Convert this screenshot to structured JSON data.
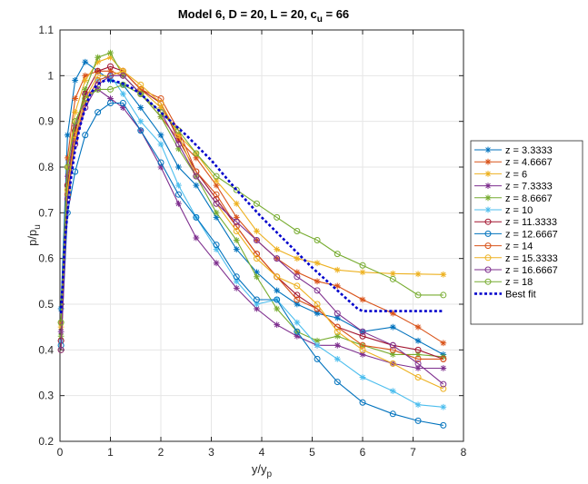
{
  "chart_data": {
    "type": "line",
    "title": "Model 6, D = 20, L = 20, c",
    "title_sub": "u",
    "title_tail": " = 66",
    "xlabel": "y/y",
    "xlabel_sub": "p",
    "ylabel": "p/p",
    "ylabel_sub": "u",
    "xlim": [
      0,
      8
    ],
    "ylim": [
      0.2,
      1.1
    ],
    "xticks": [
      0,
      1,
      2,
      3,
      4,
      5,
      6,
      7,
      8
    ],
    "yticks": [
      0.2,
      0.3,
      0.4,
      0.5,
      0.6,
      0.7,
      0.8,
      0.9,
      1,
      1.1
    ],
    "xtick_labels": [
      "0",
      "1",
      "2",
      "3",
      "4",
      "5",
      "6",
      "7",
      "8"
    ],
    "ytick_labels": [
      "0.2",
      "0.3",
      "0.4",
      "0.5",
      "0.6",
      "0.7",
      "0.8",
      "0.9",
      "1",
      "1.1"
    ],
    "grid": true,
    "legend_position": "outside-right",
    "x": [
      0.02,
      0.15,
      0.3,
      0.5,
      0.75,
      1.0,
      1.25,
      1.6,
      2.0,
      2.35,
      2.7,
      3.1,
      3.5,
      3.9,
      4.3,
      4.7,
      5.1,
      5.5,
      6.0,
      6.6,
      7.1,
      7.6
    ],
    "series": [
      {
        "name": "z = 3.3333",
        "color": "#0072BD",
        "marker": "star",
        "values": [
          0.49,
          0.87,
          0.99,
          1.03,
          1.01,
          0.99,
          0.98,
          0.93,
          0.87,
          0.8,
          0.76,
          0.69,
          0.62,
          0.57,
          0.53,
          0.5,
          0.48,
          0.47,
          0.44,
          0.45,
          0.42,
          0.39
        ]
      },
      {
        "name": "z = 4.6667",
        "color": "#D95319",
        "marker": "star",
        "values": [
          0.46,
          0.82,
          0.95,
          1.0,
          1.01,
          1.01,
          1.0,
          0.96,
          0.91,
          0.86,
          0.82,
          0.76,
          0.69,
          0.64,
          0.6,
          0.57,
          0.55,
          0.54,
          0.51,
          0.48,
          0.45,
          0.415
        ]
      },
      {
        "name": "z = 6",
        "color": "#EDB120",
        "marker": "star",
        "values": [
          0.45,
          0.8,
          0.92,
          0.99,
          1.03,
          1.04,
          1.01,
          0.97,
          0.93,
          0.87,
          0.83,
          0.77,
          0.72,
          0.66,
          0.62,
          0.6,
          0.59,
          0.575,
          0.57,
          0.567,
          0.566,
          0.565
        ]
      },
      {
        "name": "z = 7.3333",
        "color": "#7E2F8E",
        "marker": "star",
        "values": [
          0.44,
          0.78,
          0.89,
          0.96,
          0.97,
          0.95,
          0.93,
          0.88,
          0.8,
          0.72,
          0.645,
          0.59,
          0.535,
          0.49,
          0.455,
          0.43,
          0.41,
          0.41,
          0.39,
          0.37,
          0.36,
          0.36
        ]
      },
      {
        "name": "z = 8.6667",
        "color": "#77AC30",
        "marker": "star",
        "values": [
          0.43,
          0.76,
          0.88,
          0.97,
          1.04,
          1.05,
          1.0,
          0.96,
          0.91,
          0.84,
          0.78,
          0.7,
          0.64,
          0.56,
          0.49,
          0.44,
          0.42,
          0.43,
          0.41,
          0.39,
          0.39,
          0.385
        ]
      },
      {
        "name": "z = 10",
        "color": "#4DBEEE",
        "marker": "star",
        "values": [
          0.42,
          0.74,
          0.86,
          0.94,
          0.99,
          1.0,
          0.96,
          0.9,
          0.85,
          0.76,
          0.69,
          0.62,
          0.55,
          0.5,
          0.51,
          0.46,
          0.41,
          0.38,
          0.34,
          0.31,
          0.28,
          0.275
        ]
      },
      {
        "name": "z = 11.3333",
        "color": "#A2142F",
        "marker": "circle",
        "values": [
          0.42,
          0.76,
          0.88,
          0.96,
          1.01,
          1.02,
          1.01,
          0.97,
          0.94,
          0.86,
          0.79,
          0.73,
          0.67,
          0.61,
          0.56,
          0.52,
          0.49,
          0.45,
          0.43,
          0.41,
          0.4,
          0.38
        ]
      },
      {
        "name": "z = 12.6667",
        "color": "#0072BD",
        "marker": "circle",
        "values": [
          0.41,
          0.7,
          0.79,
          0.87,
          0.92,
          0.94,
          0.94,
          0.88,
          0.81,
          0.74,
          0.69,
          0.63,
          0.56,
          0.51,
          0.51,
          0.44,
          0.38,
          0.33,
          0.285,
          0.26,
          0.245,
          0.235
        ]
      },
      {
        "name": "z = 14",
        "color": "#D95319",
        "marker": "circle",
        "values": [
          0.4,
          0.74,
          0.86,
          0.94,
          0.99,
          1.0,
          1.01,
          0.97,
          0.95,
          0.88,
          0.79,
          0.74,
          0.67,
          0.61,
          0.56,
          0.51,
          0.49,
          0.45,
          0.41,
          0.4,
          0.38,
          0.38
        ]
      },
      {
        "name": "z = 15.3333",
        "color": "#EDB120",
        "marker": "circle",
        "values": [
          0.4,
          0.75,
          0.87,
          0.95,
          1.0,
          1.0,
          1.01,
          0.98,
          0.94,
          0.87,
          0.78,
          0.72,
          0.66,
          0.6,
          0.56,
          0.54,
          0.5,
          0.44,
          0.4,
          0.37,
          0.34,
          0.315
        ]
      },
      {
        "name": "z = 16.6667",
        "color": "#7E2F8E",
        "marker": "circle",
        "values": [
          0.4,
          0.73,
          0.85,
          0.93,
          0.98,
          1.0,
          1.0,
          0.96,
          0.92,
          0.85,
          0.78,
          0.72,
          0.68,
          0.64,
          0.6,
          0.56,
          0.53,
          0.48,
          0.44,
          0.41,
          0.37,
          0.325
        ]
      },
      {
        "name": "z = 18",
        "color": "#77AC30",
        "marker": "circle",
        "values": [
          0.46,
          0.8,
          0.9,
          0.95,
          0.97,
          0.97,
          0.98,
          0.96,
          0.92,
          0.88,
          0.83,
          0.78,
          0.75,
          0.72,
          0.69,
          0.66,
          0.64,
          0.61,
          0.585,
          0.555,
          0.52,
          0.52
        ]
      }
    ],
    "best_fit": {
      "name": "Best fit",
      "color": "#0000CC",
      "x": [
        0.02,
        0.1,
        0.2,
        0.3,
        0.4,
        0.5,
        0.6,
        0.7,
        0.8,
        0.9,
        1.0,
        1.2,
        1.4,
        1.6,
        2.0,
        2.5,
        3.0,
        3.5,
        4.0,
        4.5,
        5.0,
        5.5,
        5.9,
        6.0,
        7.6
      ],
      "values": [
        0.48,
        0.64,
        0.76,
        0.84,
        0.89,
        0.93,
        0.96,
        0.975,
        0.985,
        0.99,
        0.99,
        0.985,
        0.975,
        0.96,
        0.92,
        0.87,
        0.815,
        0.75,
        0.69,
        0.635,
        0.58,
        0.53,
        0.49,
        0.485,
        0.485
      ]
    }
  }
}
